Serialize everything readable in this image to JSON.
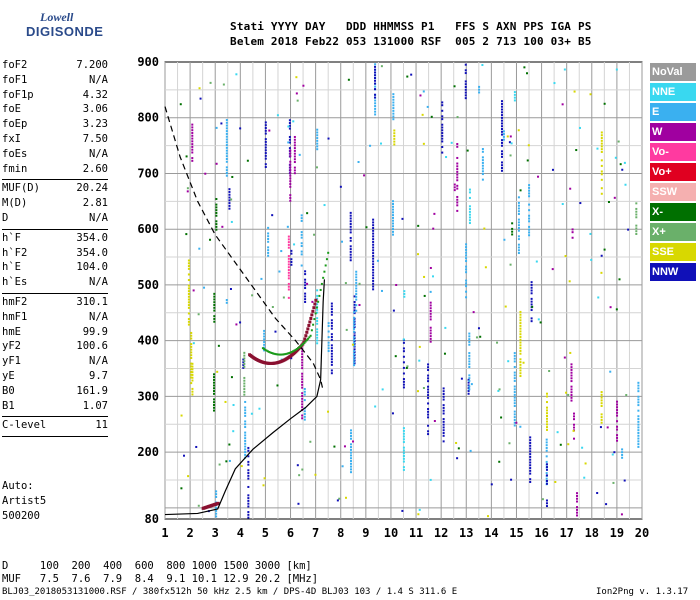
{
  "logo": {
    "line1": "Lowell",
    "line2": "DIGISONDE"
  },
  "header": {
    "line1": "Stati YYYY DAY   DDD HHMMSS P1   FFS S AXN PPS IGA PS",
    "line2": "Belem 2018 Feb22 053 131000 RSF  005 2 713 100 03+ B5"
  },
  "params": [
    [
      {
        "k": "foF2",
        "v": "7.200"
      },
      {
        "k": "foF1",
        "v": "N/A"
      },
      {
        "k": "foF1p",
        "v": "4.32"
      },
      {
        "k": "foE",
        "v": "3.06"
      },
      {
        "k": "foEp",
        "v": "3.23"
      },
      {
        "k": "fxI",
        "v": "7.50"
      },
      {
        "k": "foEs",
        "v": "N/A"
      },
      {
        "k": "fmin",
        "v": "2.60"
      }
    ],
    [
      {
        "k": "MUF(D)",
        "v": "20.24"
      },
      {
        "k": "M(D)",
        "v": "2.81"
      },
      {
        "k": "D",
        "v": "N/A"
      }
    ],
    [
      {
        "k": "h`F",
        "v": "354.0"
      },
      {
        "k": "h`F2",
        "v": "354.0"
      },
      {
        "k": "h`E",
        "v": "104.0"
      },
      {
        "k": "h`Es",
        "v": "N/A"
      }
    ],
    [
      {
        "k": "hmF2",
        "v": "310.1"
      },
      {
        "k": "hmF1",
        "v": "N/A"
      },
      {
        "k": "hmE",
        "v": "99.9"
      },
      {
        "k": "yF2",
        "v": "100.6"
      },
      {
        "k": "yF1",
        "v": "N/A"
      },
      {
        "k": "yE",
        "v": "9.7"
      },
      {
        "k": "B0",
        "v": "161.9"
      },
      {
        "k": "B1",
        "v": "1.07"
      }
    ],
    [
      {
        "k": "C-level",
        "v": "11"
      }
    ]
  ],
  "auto": {
    "l1": "Auto:",
    "l2": "Artist5",
    "l3": "500200"
  },
  "legend": [
    {
      "label": "NoVal",
      "color": "#9a9a9a"
    },
    {
      "label": "NNE",
      "color": "#39d8f0"
    },
    {
      "label": "E",
      "color": "#3ab0f0"
    },
    {
      "label": "W",
      "color": "#a000a0"
    },
    {
      "label": "Vo-",
      "color": "#ff3aa0"
    },
    {
      "label": "Vo+",
      "color": "#e00020"
    },
    {
      "label": "SSW",
      "color": "#f5b0b0"
    },
    {
      "label": "X-",
      "color": "#007000"
    },
    {
      "label": "X+",
      "color": "#6ab06a"
    },
    {
      "label": "SSE",
      "color": "#d8d800"
    },
    {
      "label": "NNW",
      "color": "#1010b8"
    }
  ],
  "chart_data": {
    "type": "scatter",
    "xlim": [
      1,
      20
    ],
    "ylim": [
      80,
      900
    ],
    "xticks": [
      "1",
      "2",
      "3",
      "4",
      "5",
      "6",
      "7",
      "8",
      "9",
      "10",
      "11",
      "12",
      "13",
      "14",
      "15",
      "16",
      "17",
      "18",
      "19",
      "20"
    ],
    "yticks": [
      "80",
      "200",
      "300",
      "400",
      "500",
      "600",
      "700",
      "800",
      "900"
    ],
    "grid": true
  },
  "footer": {
    "line1": "D     100  200  400  600  800 1000 1500 3000 [km]",
    "line2": "MUF   7.5  7.6  7.9  8.4  9.1 10.1 12.9 20.2 [MHz]",
    "left": "BLJ03_2018053131000.RSF / 380fx512h 50 kHz 2.5 km / DPS-4D BLJ03 103 / 1.4 S 311.6 E",
    "right": "Ion2Png v. 1.3.17"
  }
}
